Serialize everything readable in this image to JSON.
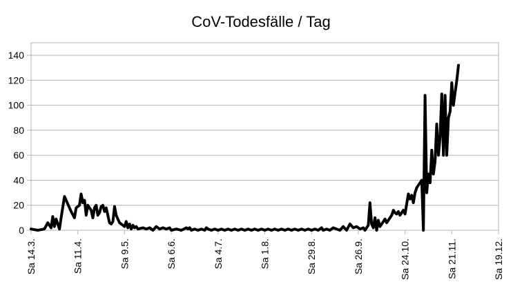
{
  "chart_data": {
    "type": "line",
    "title": "CoV-Todesfälle / Tag",
    "xlabel": "",
    "ylabel": "",
    "ylim": [
      0,
      150
    ],
    "yticks": [
      0,
      20,
      40,
      60,
      80,
      100,
      120,
      140
    ],
    "grid": true,
    "legend": "none",
    "line_color": "#000000",
    "x_tick_labels": [
      "Sa 14.3.",
      "Sa 11.4.",
      "Sa 9.5.",
      "Sa 6.6.",
      "Sa 4.7.",
      "Sa 1.8.",
      "Sa 29.8.",
      "Sa 26.9.",
      "Sa 24.10.",
      "Sa 21.11.",
      "Sa 19.12."
    ],
    "series": [
      {
        "points": [
          [
            "2020-03-14",
            1
          ],
          [
            "2020-03-18",
            0
          ],
          [
            "2020-03-22",
            1
          ],
          [
            "2020-03-24",
            6
          ],
          [
            "2020-03-26",
            2
          ],
          [
            "2020-03-27",
            11
          ],
          [
            "2020-03-28",
            3
          ],
          [
            "2020-03-29",
            9
          ],
          [
            "2020-03-31",
            1
          ],
          [
            "2020-04-01",
            10
          ],
          [
            "2020-04-03",
            27
          ],
          [
            "2020-04-05",
            21
          ],
          [
            "2020-04-07",
            15
          ],
          [
            "2020-04-09",
            10
          ],
          [
            "2020-04-10",
            18
          ],
          [
            "2020-04-12",
            20
          ],
          [
            "2020-04-13",
            29
          ],
          [
            "2020-04-14",
            22
          ],
          [
            "2020-04-15",
            24
          ],
          [
            "2020-04-16",
            12
          ],
          [
            "2020-04-17",
            20
          ],
          [
            "2020-04-19",
            16
          ],
          [
            "2020-04-20",
            10
          ],
          [
            "2020-04-21",
            18
          ],
          [
            "2020-04-22",
            20
          ],
          [
            "2020-04-23",
            12
          ],
          [
            "2020-04-24",
            14
          ],
          [
            "2020-04-25",
            19
          ],
          [
            "2020-04-26",
            20
          ],
          [
            "2020-04-27",
            15
          ],
          [
            "2020-04-28",
            18
          ],
          [
            "2020-04-30",
            6
          ],
          [
            "2020-05-01",
            5
          ],
          [
            "2020-05-02",
            7
          ],
          [
            "2020-05-03",
            19
          ],
          [
            "2020-05-04",
            12
          ],
          [
            "2020-05-05",
            9
          ],
          [
            "2020-05-06",
            6
          ],
          [
            "2020-05-08",
            4
          ],
          [
            "2020-05-09",
            3
          ],
          [
            "2020-05-10",
            7
          ],
          [
            "2020-05-11",
            2
          ],
          [
            "2020-05-12",
            5
          ],
          [
            "2020-05-13",
            1
          ],
          [
            "2020-05-14",
            4
          ],
          [
            "2020-05-15",
            2
          ],
          [
            "2020-05-16",
            3
          ],
          [
            "2020-05-17",
            1
          ],
          [
            "2020-05-20",
            2
          ],
          [
            "2020-05-22",
            1
          ],
          [
            "2020-05-24",
            2
          ],
          [
            "2020-05-26",
            0
          ],
          [
            "2020-05-28",
            3
          ],
          [
            "2020-05-30",
            1
          ],
          [
            "2020-06-01",
            2
          ],
          [
            "2020-06-03",
            1
          ],
          [
            "2020-06-05",
            2
          ],
          [
            "2020-06-06",
            0
          ],
          [
            "2020-06-09",
            1
          ],
          [
            "2020-06-12",
            0
          ],
          [
            "2020-06-15",
            2
          ],
          [
            "2020-06-16",
            1
          ],
          [
            "2020-06-17",
            2
          ],
          [
            "2020-06-18",
            0
          ],
          [
            "2020-06-20",
            1
          ],
          [
            "2020-06-22",
            0
          ],
          [
            "2020-06-24",
            1
          ],
          [
            "2020-06-26",
            0
          ],
          [
            "2020-06-27",
            2
          ],
          [
            "2020-06-28",
            1
          ],
          [
            "2020-06-30",
            0
          ],
          [
            "2020-07-02",
            1
          ],
          [
            "2020-07-04",
            0
          ],
          [
            "2020-07-06",
            1
          ],
          [
            "2020-07-08",
            0
          ],
          [
            "2020-07-10",
            1
          ],
          [
            "2020-07-12",
            0
          ],
          [
            "2020-07-14",
            1
          ],
          [
            "2020-07-16",
            0
          ],
          [
            "2020-07-18",
            1
          ],
          [
            "2020-07-20",
            0
          ],
          [
            "2020-07-22",
            1
          ],
          [
            "2020-07-24",
            0
          ],
          [
            "2020-07-26",
            1
          ],
          [
            "2020-07-28",
            0
          ],
          [
            "2020-07-30",
            1
          ],
          [
            "2020-08-01",
            0
          ],
          [
            "2020-08-03",
            1
          ],
          [
            "2020-08-05",
            0
          ],
          [
            "2020-08-07",
            1
          ],
          [
            "2020-08-09",
            0
          ],
          [
            "2020-08-11",
            1
          ],
          [
            "2020-08-13",
            0
          ],
          [
            "2020-08-15",
            1
          ],
          [
            "2020-08-17",
            0
          ],
          [
            "2020-08-19",
            1
          ],
          [
            "2020-08-21",
            0
          ],
          [
            "2020-08-23",
            1
          ],
          [
            "2020-08-25",
            0
          ],
          [
            "2020-08-27",
            1
          ],
          [
            "2020-08-29",
            0
          ],
          [
            "2020-08-31",
            1
          ],
          [
            "2020-09-02",
            0
          ],
          [
            "2020-09-04",
            2
          ],
          [
            "2020-09-05",
            0
          ],
          [
            "2020-09-07",
            1
          ],
          [
            "2020-09-09",
            0
          ],
          [
            "2020-09-11",
            2
          ],
          [
            "2020-09-13",
            1
          ],
          [
            "2020-09-15",
            0
          ],
          [
            "2020-09-17",
            3
          ],
          [
            "2020-09-19",
            0
          ],
          [
            "2020-09-21",
            5
          ],
          [
            "2020-09-23",
            2
          ],
          [
            "2020-09-25",
            3
          ],
          [
            "2020-09-27",
            1
          ],
          [
            "2020-09-29",
            2
          ],
          [
            "2020-09-30",
            0
          ],
          [
            "2020-10-02",
            4
          ],
          [
            "2020-10-03",
            22
          ],
          [
            "2020-10-04",
            5
          ],
          [
            "2020-10-05",
            2
          ],
          [
            "2020-10-06",
            10
          ],
          [
            "2020-10-07",
            0
          ],
          [
            "2020-10-08",
            8
          ],
          [
            "2020-10-09",
            3
          ],
          [
            "2020-10-10",
            5
          ],
          [
            "2020-10-11",
            7
          ],
          [
            "2020-10-12",
            9
          ],
          [
            "2020-10-13",
            6
          ],
          [
            "2020-10-14",
            8
          ],
          [
            "2020-10-15",
            10
          ],
          [
            "2020-10-16",
            12
          ],
          [
            "2020-10-17",
            16
          ],
          [
            "2020-10-18",
            14
          ],
          [
            "2020-10-19",
            13
          ],
          [
            "2020-10-20",
            15
          ],
          [
            "2020-10-21",
            12
          ],
          [
            "2020-10-22",
            14
          ],
          [
            "2020-10-23",
            16
          ],
          [
            "2020-10-24",
            13
          ],
          [
            "2020-10-25",
            21
          ],
          [
            "2020-10-26",
            29
          ],
          [
            "2020-10-27",
            25
          ],
          [
            "2020-10-28",
            28
          ],
          [
            "2020-10-29",
            22
          ],
          [
            "2020-10-30",
            30
          ],
          [
            "2020-10-31",
            34
          ],
          [
            "2020-11-01",
            36
          ],
          [
            "2020-11-02",
            38
          ],
          [
            "2020-11-03",
            40
          ],
          [
            "2020-11-04",
            0
          ],
          [
            "2020-11-05",
            108
          ],
          [
            "2020-11-06",
            30
          ],
          [
            "2020-11-07",
            45
          ],
          [
            "2020-11-08",
            38
          ],
          [
            "2020-11-09",
            64
          ],
          [
            "2020-11-10",
            45
          ],
          [
            "2020-11-11",
            55
          ],
          [
            "2020-11-12",
            85
          ],
          [
            "2020-11-13",
            60
          ],
          [
            "2020-11-14",
            75
          ],
          [
            "2020-11-15",
            109
          ],
          [
            "2020-11-16",
            60
          ],
          [
            "2020-11-17",
            108
          ],
          [
            "2020-11-18",
            60
          ],
          [
            "2020-11-19",
            90
          ],
          [
            "2020-11-20",
            95
          ],
          [
            "2020-11-21",
            118
          ],
          [
            "2020-11-22",
            100
          ],
          [
            "2020-11-23",
            110
          ],
          [
            "2020-11-24",
            120
          ],
          [
            "2020-11-25",
            132
          ]
        ]
      }
    ]
  }
}
